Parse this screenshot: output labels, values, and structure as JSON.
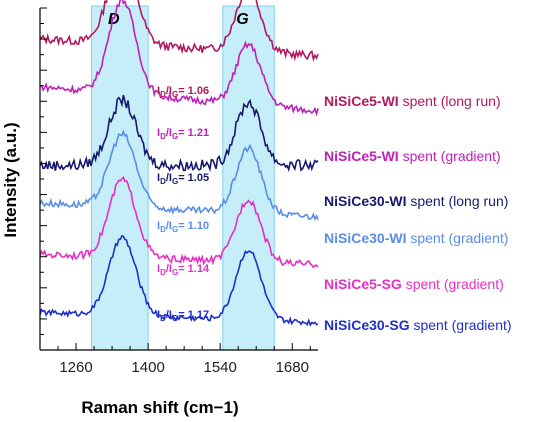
{
  "chart_data": {
    "type": "line",
    "xlabel": "Raman shift (cm−1)",
    "ylabel": "Intensity (a.u.)",
    "xlim": [
      1190,
      1730
    ],
    "x_ticks": [
      1260,
      1400,
      1540,
      1680
    ],
    "y_ticks_labeled": false,
    "grid": false,
    "bands": [
      {
        "label": "D",
        "range": [
          1290,
          1400
        ]
      },
      {
        "label": "G",
        "range": [
          1545,
          1645
        ]
      }
    ],
    "series": [
      {
        "name": "NiSiCe5-WI",
        "suffix": "spent (long run)",
        "color": "#b5175e",
        "ratio_prefix": "I",
        "ratio_sub_d": "D",
        "ratio_slash": "/I",
        "ratio_sub_g": "G",
        "ratio_value": "= 1.06",
        "ratio_color": "#b5175e",
        "baseline": 0.86,
        "left_offset": 0.05,
        "d_height": 0.72,
        "g_height": 0.5,
        "noise": 0.012
      },
      {
        "name": "NiSiCe5-WI",
        "suffix": "spent (gradient)",
        "color": "#c020b8",
        "ratio_prefix": "I",
        "ratio_sub_d": "D",
        "ratio_slash": "/I",
        "ratio_sub_g": "G",
        "ratio_value": "= 1.21",
        "ratio_color": "#c020b8",
        "baseline": 0.7,
        "left_offset": 0.07,
        "d_height": 0.75,
        "g_height": 0.48,
        "noise": 0.01
      },
      {
        "name": "NiSiCe30-WI",
        "suffix": "spent (long run)",
        "color": "#16196e",
        "ratio_prefix": "I",
        "ratio_sub_d": "D",
        "ratio_slash": "/I",
        "ratio_sub_g": "G",
        "ratio_value": "= 1.05",
        "ratio_color": "#16196e",
        "baseline": 0.54,
        "left_offset": 0.0,
        "d_height": 0.52,
        "g_height": 0.5,
        "noise": 0.016
      },
      {
        "name": "NiSiCe30-WI",
        "suffix": "spent (gradient)",
        "color": "#5a8de6",
        "ratio_prefix": "I",
        "ratio_sub_d": "D",
        "ratio_slash": "/I",
        "ratio_sub_g": "G",
        "ratio_value": "= 1.10",
        "ratio_color": "#5a8de6",
        "baseline": 0.39,
        "left_offset": 0.04,
        "d_height": 0.58,
        "g_height": 0.52,
        "noise": 0.01
      },
      {
        "name": "NiSiCe5-SG",
        "suffix": "spent (gradient)",
        "color": "#e52fc7",
        "ratio_prefix": "I",
        "ratio_sub_d": "D",
        "ratio_slash": "/I",
        "ratio_sub_g": "G",
        "ratio_value": "= 1.14",
        "ratio_color": "#e52fc7",
        "baseline": 0.25,
        "left_offset": 0.03,
        "d_height": 0.62,
        "g_height": 0.5,
        "noise": 0.01
      },
      {
        "name": "NiSiCe30-SG",
        "suffix": "spent (gradient)",
        "color": "#1f2fc8",
        "ratio_prefix": "I",
        "ratio_sub_d": "D",
        "ratio_slash": "/I",
        "ratio_sub_g": "G",
        "ratio_value": "= 1.17",
        "ratio_color": "#1f2fc8",
        "baseline": 0.08,
        "left_offset": 0.03,
        "d_height": 0.62,
        "g_height": 0.56,
        "noise": 0.008
      }
    ],
    "peaks": {
      "d_center": 1350,
      "d_width": 26,
      "g_center": 1595,
      "g_width": 24
    }
  }
}
